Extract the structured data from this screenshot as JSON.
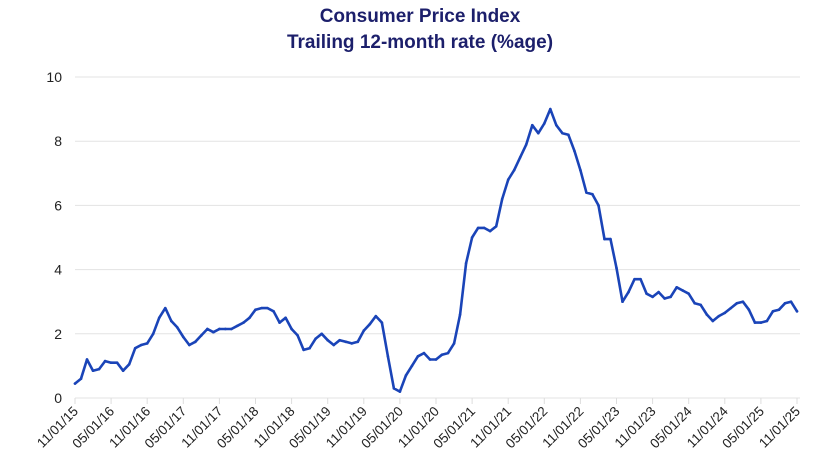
{
  "chart_data": {
    "type": "line",
    "title": "Consumer Price Index",
    "subtitle": "Trailing 12-month rate (%age)",
    "xlabel": "",
    "ylabel": "",
    "ylim": [
      0,
      10
    ],
    "yticks": [
      0,
      2,
      4,
      6,
      8,
      10
    ],
    "grid": true,
    "line_color": "#1a44b8",
    "title_color": "#1c1f6b",
    "xtick_labels": [
      "11/01/15",
      "05/01/16",
      "11/01/16",
      "05/01/17",
      "11/01/17",
      "05/01/18",
      "11/01/18",
      "05/01/19",
      "11/01/19",
      "05/01/20",
      "11/01/20",
      "05/01/21",
      "11/01/21",
      "05/01/22",
      "11/01/22",
      "05/01/23",
      "11/01/23",
      "05/01/24",
      "11/01/24",
      "05/01/25",
      "11/01/25"
    ],
    "x": [
      "2015-11",
      "2015-12",
      "2016-01",
      "2016-02",
      "2016-03",
      "2016-04",
      "2016-05",
      "2016-06",
      "2016-07",
      "2016-08",
      "2016-09",
      "2016-10",
      "2016-11",
      "2016-12",
      "2017-01",
      "2017-02",
      "2017-03",
      "2017-04",
      "2017-05",
      "2017-06",
      "2017-07",
      "2017-08",
      "2017-09",
      "2017-10",
      "2017-11",
      "2017-12",
      "2018-01",
      "2018-02",
      "2018-03",
      "2018-04",
      "2018-05",
      "2018-06",
      "2018-07",
      "2018-08",
      "2018-09",
      "2018-10",
      "2018-11",
      "2018-12",
      "2019-01",
      "2019-02",
      "2019-03",
      "2019-04",
      "2019-05",
      "2019-06",
      "2019-07",
      "2019-08",
      "2019-09",
      "2019-10",
      "2019-11",
      "2019-12",
      "2020-01",
      "2020-02",
      "2020-03",
      "2020-04",
      "2020-05",
      "2020-06",
      "2020-07",
      "2020-08",
      "2020-09",
      "2020-10",
      "2020-11",
      "2020-12",
      "2021-01",
      "2021-02",
      "2021-03",
      "2021-04",
      "2021-05",
      "2021-06",
      "2021-07",
      "2021-08",
      "2021-09",
      "2021-10",
      "2021-11",
      "2021-12",
      "2022-01",
      "2022-02",
      "2022-03",
      "2022-04",
      "2022-05",
      "2022-06",
      "2022-07",
      "2022-08",
      "2022-09",
      "2022-10",
      "2022-11",
      "2022-12",
      "2023-01",
      "2023-02",
      "2023-03",
      "2023-04",
      "2023-05",
      "2023-06",
      "2023-07",
      "2023-08",
      "2023-09",
      "2023-10",
      "2023-11",
      "2023-12",
      "2024-01",
      "2024-02",
      "2024-03",
      "2024-04",
      "2024-05",
      "2024-06",
      "2024-07",
      "2024-08",
      "2024-09",
      "2024-10",
      "2024-11",
      "2024-12",
      "2025-01",
      "2025-02",
      "2025-03",
      "2025-04",
      "2025-05",
      "2025-06",
      "2025-07",
      "2025-08",
      "2025-09",
      "2025-10",
      "2025-11"
    ],
    "series": [
      {
        "values": [
          0.45,
          0.6,
          1.2,
          0.85,
          0.9,
          1.15,
          1.1,
          1.1,
          0.85,
          1.05,
          1.55,
          1.65,
          1.7,
          2.0,
          2.5,
          2.8,
          2.4,
          2.2,
          1.9,
          1.65,
          1.75,
          1.95,
          2.15,
          2.05,
          2.15,
          2.15,
          2.15,
          2.25,
          2.35,
          2.5,
          2.75,
          2.8,
          2.8,
          2.7,
          2.35,
          2.5,
          2.15,
          1.95,
          1.5,
          1.55,
          1.85,
          2.0,
          1.8,
          1.65,
          1.8,
          1.75,
          1.7,
          1.75,
          2.1,
          2.3,
          2.55,
          2.35,
          1.3,
          0.3,
          0.2,
          0.7,
          1.0,
          1.3,
          1.4,
          1.2,
          1.2,
          1.35,
          1.4,
          1.7,
          2.6,
          4.2,
          5.0,
          5.3,
          5.3,
          5.2,
          5.35,
          6.2,
          6.8,
          7.1,
          7.5,
          7.9,
          8.5,
          8.25,
          8.55,
          9.0,
          8.5,
          8.25,
          8.2,
          7.7,
          7.1,
          6.4,
          6.35,
          6.0,
          4.95,
          4.95,
          4.05,
          3.0,
          3.3,
          3.7,
          3.7,
          3.25,
          3.15,
          3.3,
          3.1,
          3.15,
          3.45,
          3.35,
          3.25,
          2.95,
          2.9,
          2.6,
          2.4,
          2.55,
          2.65,
          2.8,
          2.95,
          3.0,
          2.75,
          2.35,
          2.35,
          2.4,
          2.7,
          2.75,
          2.95,
          3.0,
          2.7
        ]
      }
    ]
  }
}
